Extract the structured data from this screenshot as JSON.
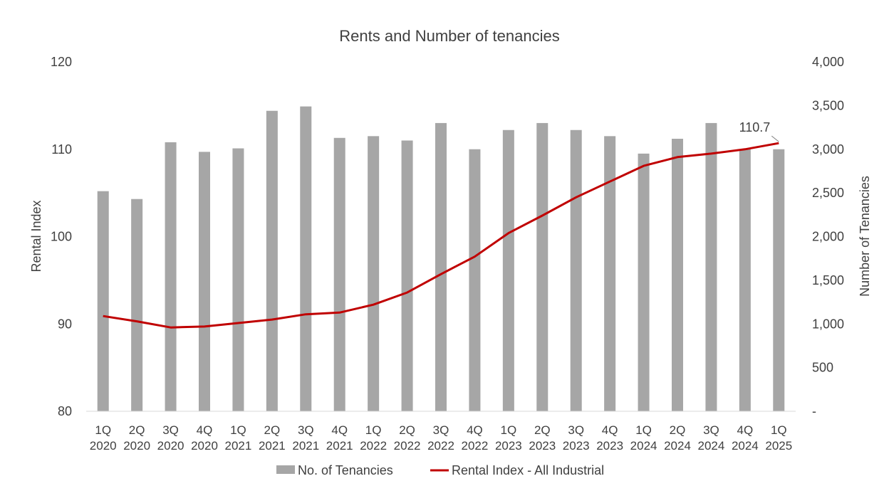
{
  "chart_data": {
    "type": "bar+line",
    "title": "Rents and Number of tenancies",
    "categories": [
      "1Q 2020",
      "2Q 2020",
      "3Q 2020",
      "4Q 2020",
      "1Q 2021",
      "2Q 2021",
      "3Q 2021",
      "4Q 2021",
      "1Q 2022",
      "2Q 2022",
      "3Q 2022",
      "4Q 2022",
      "1Q 2023",
      "2Q 2023",
      "3Q 2023",
      "4Q 2023",
      "1Q 2024",
      "2Q 2024",
      "3Q 2024",
      "4Q 2024",
      "1Q 2025"
    ],
    "y_left": {
      "label": "Rental Index",
      "ylim": [
        80,
        120
      ],
      "ticks": [
        "80",
        "90",
        "100",
        "110",
        "120"
      ]
    },
    "y_right": {
      "label": "Number of Tenancies",
      "ylim": [
        0,
        4000
      ],
      "ticks": [
        "-",
        "500",
        "1,000",
        "1,500",
        "2,000",
        "2,500",
        "3,000",
        "3,500",
        "4,000"
      ]
    },
    "series": [
      {
        "name": "No. of Tenancies",
        "type": "bar",
        "axis": "right",
        "color": "#a6a6a6",
        "values": [
          2520,
          2430,
          3080,
          2970,
          3010,
          3440,
          3490,
          3130,
          3150,
          3100,
          3300,
          3000,
          3220,
          3300,
          3220,
          3150,
          2950,
          3120,
          3300,
          3000,
          3000
        ]
      },
      {
        "name": "Rental Index - All Industrial",
        "type": "line",
        "axis": "left",
        "color": "#c00000",
        "values": [
          90.9,
          90.3,
          89.6,
          89.7,
          90.1,
          90.5,
          91.1,
          91.3,
          92.2,
          93.6,
          95.7,
          97.7,
          100.4,
          102.4,
          104.5,
          106.3,
          108.1,
          109.1,
          109.5,
          110.0,
          110.7
        ]
      }
    ],
    "annotations": [
      {
        "text": "110.7",
        "series": "Rental Index - All Industrial",
        "category": "1Q 2025"
      }
    ],
    "legend_position": "bottom",
    "grid": false
  }
}
